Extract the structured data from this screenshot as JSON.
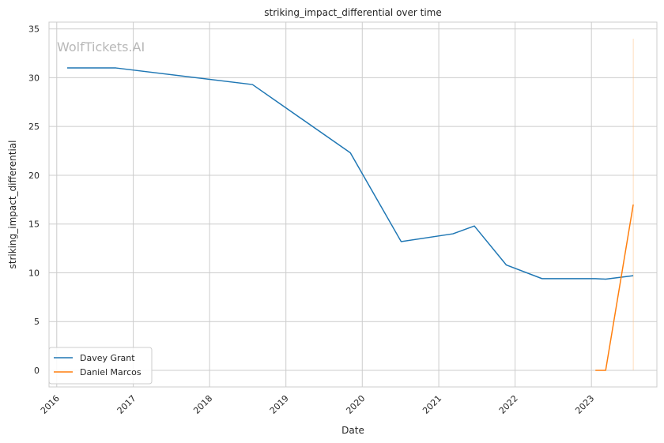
{
  "chart_data": {
    "type": "line",
    "title": "striking_impact_differential over time",
    "xlabel": "Date",
    "ylabel": "striking_impact_differential",
    "watermark": "WolfTickets.AI",
    "x_ticks": [
      "2016",
      "2017",
      "2018",
      "2019",
      "2020",
      "2021",
      "2022",
      "2023"
    ],
    "y_ticks": [
      0,
      5,
      10,
      15,
      20,
      25,
      30,
      35
    ],
    "xlim": [
      "2015-11-25",
      "2023-11-10"
    ],
    "ylim": [
      -1.7,
      35.7
    ],
    "grid": true,
    "legend_position": "lower-left",
    "series": [
      {
        "name": "Davey Grant",
        "color": "#1f77b4",
        "points": [
          [
            "2016-02-20",
            31.0
          ],
          [
            "2016-10-10",
            31.0
          ],
          [
            "2018-07-25",
            29.3
          ],
          [
            "2019-11-05",
            22.3
          ],
          [
            "2020-07-05",
            13.2
          ],
          [
            "2021-03-10",
            14.0
          ],
          [
            "2021-06-20",
            14.8
          ],
          [
            "2021-11-20",
            10.8
          ],
          [
            "2022-05-10",
            9.4
          ],
          [
            "2023-01-20",
            9.4
          ],
          [
            "2023-03-10",
            9.35
          ],
          [
            "2023-07-20",
            9.7
          ]
        ]
      },
      {
        "name": "Daniel Marcos",
        "color": "#ff7f0e",
        "points": [
          [
            "2023-01-20",
            0.0
          ],
          [
            "2023-03-10",
            0.0
          ],
          [
            "2023-07-20",
            17.0
          ]
        ]
      }
    ],
    "annotations": [
      {
        "type": "vline",
        "x": "2023-07-20",
        "y_range": [
          0,
          34
        ],
        "color": "#ffbb78"
      }
    ]
  }
}
